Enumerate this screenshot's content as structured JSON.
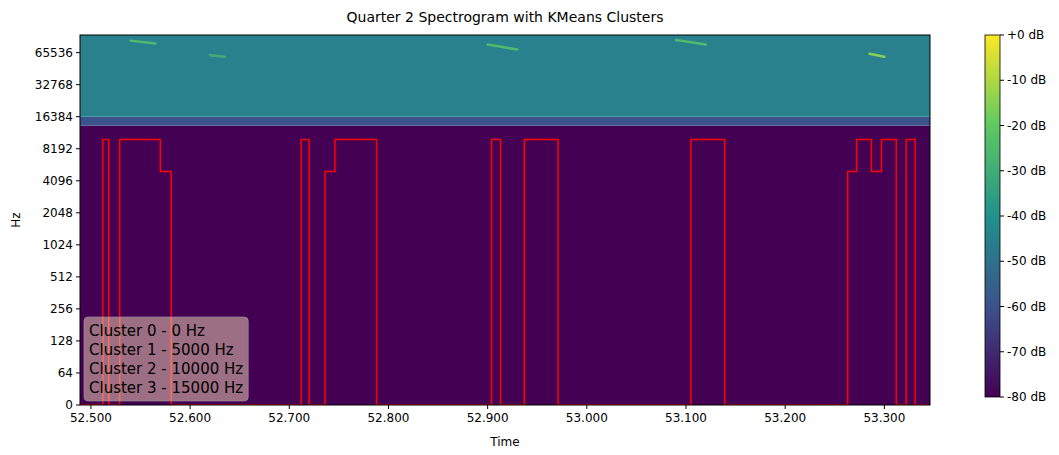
{
  "chart_data": {
    "type": "spectrogram",
    "title": "Quarter 2 Spectrogram with KMeans Clusters",
    "x_label": "Time",
    "y_label": "Hz",
    "log": "y",
    "xlim": [
      52.489,
      53.346
    ],
    "xticks": [
      {
        "value": 52.5,
        "label": "52.500"
      },
      {
        "value": 52.6,
        "label": "52.600"
      },
      {
        "value": 52.7,
        "label": "52.700"
      },
      {
        "value": 52.8,
        "label": "52.800"
      },
      {
        "value": 52.9,
        "label": "52.900"
      },
      {
        "value": 53.0,
        "label": "53.000"
      },
      {
        "value": 53.1,
        "label": "53.100"
      },
      {
        "value": 53.2,
        "label": "53.200"
      },
      {
        "value": 53.3,
        "label": "53.300"
      }
    ],
    "ylim": [
      0,
      96000
    ],
    "yticks": [
      0,
      64,
      128,
      256,
      512,
      1024,
      2048,
      4096,
      8192,
      16384,
      32768,
      65536
    ],
    "spectrogram": {
      "bands": [
        {
          "from": 0,
          "to": 13500,
          "db": -80
        },
        {
          "from": 13500,
          "to": 16384,
          "db": -60
        },
        {
          "from": 16384,
          "to": 96000,
          "db": -45
        }
      ],
      "streaks": [
        {
          "t0": 52.54,
          "t1": 52.565,
          "f0": 85000,
          "f1": 80000,
          "db": -25
        },
        {
          "t0": 52.62,
          "t1": 52.635,
          "f0": 62000,
          "f1": 60000,
          "db": -30
        },
        {
          "t0": 52.9,
          "t1": 52.93,
          "f0": 78000,
          "f1": 70000,
          "db": -25
        },
        {
          "t0": 53.09,
          "t1": 53.12,
          "f0": 86000,
          "f1": 78000,
          "db": -25
        },
        {
          "t0": 53.285,
          "t1": 53.3,
          "f0": 64000,
          "f1": 60000,
          "db": -15
        }
      ]
    },
    "colorbar": {
      "range": [
        -80,
        0
      ],
      "ticks": [
        {
          "value": 0,
          "label": "+0 dB"
        },
        {
          "value": -10,
          "label": "-10 dB"
        },
        {
          "value": -20,
          "label": "-20 dB"
        },
        {
          "value": -30,
          "label": "-30 dB"
        },
        {
          "value": -40,
          "label": "-40 dB"
        },
        {
          "value": -50,
          "label": "-50 dB"
        },
        {
          "value": -60,
          "label": "-60 dB"
        },
        {
          "value": -70,
          "label": "-70 dB"
        },
        {
          "value": -80,
          "label": "-80 dB"
        }
      ]
    },
    "x": [
      52.489,
      52.512,
      52.518,
      52.529,
      52.57,
      52.581,
      52.712,
      52.72,
      52.736,
      52.746,
      52.788,
      52.904,
      52.913,
      52.937,
      52.971,
      53.105,
      53.139,
      53.263,
      53.272,
      53.287,
      53.297,
      53.312,
      53.322,
      53.331,
      53.346
    ],
    "series": [
      {
        "name": "KMeans Clusters",
        "type": "line",
        "line_style": "steps",
        "color": "#ff0000",
        "values": [
          0,
          10000,
          0,
          10000,
          5000,
          0,
          10000,
          0,
          5000,
          10000,
          0,
          10000,
          0,
          10000,
          0,
          10000,
          0,
          5000,
          10000,
          5000,
          10000,
          0,
          10000,
          0,
          0
        ]
      }
    ],
    "annotations": [
      "Cluster 0 - 0 Hz",
      "Cluster 1 - 5000 Hz",
      "Cluster 2 - 10000 Hz",
      "Cluster 3 - 15000 Hz"
    ]
  }
}
